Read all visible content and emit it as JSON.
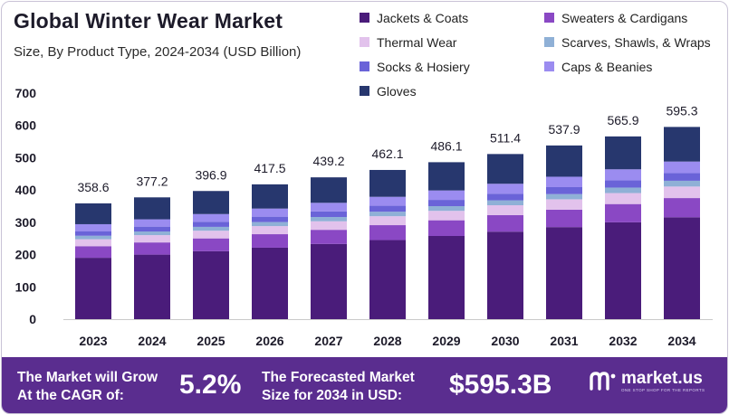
{
  "title": "Global Winter Wear Market",
  "subtitle": "Size, By Product Type, 2024-2034 (USD Billion)",
  "legend": [
    {
      "label": "Jackets & Coats",
      "color": "#4a1c7a"
    },
    {
      "label": "Sweaters & Cardigans",
      "color": "#8a48c4"
    },
    {
      "label": "Thermal Wear",
      "color": "#e2c2ec"
    },
    {
      "label": "Scarves, Shawls, & Wraps",
      "color": "#8fb0d6"
    },
    {
      "label": "Socks & Hosiery",
      "color": "#6a63d8"
    },
    {
      "label": "Caps & Beanies",
      "color": "#9b8cf0"
    },
    {
      "label": "Gloves",
      "color": "#27376e"
    }
  ],
  "chart_data": {
    "type": "bar",
    "stacked": true,
    "categories": [
      "2023",
      "2024",
      "2025",
      "2026",
      "2027",
      "2028",
      "2029",
      "2030",
      "2031",
      "2032",
      "2034"
    ],
    "totals": [
      358.6,
      377.2,
      396.9,
      417.5,
      439.2,
      462.1,
      486.1,
      511.4,
      537.9,
      565.9,
      595.3
    ],
    "total_labels": [
      "358.6",
      "377.2",
      "396.9",
      "417.5",
      "439.2",
      "462.1",
      "486.1",
      "511.4",
      "537.9",
      "565.9",
      "595.3"
    ],
    "series": [
      {
        "name": "Jackets & Coats",
        "color": "#4a1c7a",
        "values": [
          190.1,
          199.9,
          210.4,
          221.3,
          232.8,
          244.9,
          257.6,
          271.0,
          285.1,
          299.9,
          315.5
        ]
      },
      {
        "name": "Sweaters & Cardigans",
        "color": "#8a48c4",
        "values": [
          35.9,
          37.7,
          39.7,
          41.8,
          43.9,
          46.2,
          48.6,
          51.1,
          53.8,
          56.6,
          59.5
        ]
      },
      {
        "name": "Thermal Wear",
        "color": "#e2c2ec",
        "values": [
          21.5,
          22.6,
          23.8,
          25.1,
          26.4,
          27.7,
          29.2,
          30.7,
          32.3,
          34.0,
          35.7
        ]
      },
      {
        "name": "Scarves, Shawls, & Wraps",
        "color": "#8fb0d6",
        "values": [
          10.8,
          11.3,
          11.9,
          12.5,
          13.2,
          13.9,
          14.6,
          15.3,
          16.1,
          17.0,
          17.9
        ]
      },
      {
        "name": "Socks & Hosiery",
        "color": "#6a63d8",
        "values": [
          14.3,
          15.1,
          15.9,
          16.7,
          17.6,
          18.5,
          19.4,
          20.5,
          21.5,
          22.6,
          23.8
        ]
      },
      {
        "name": "Caps & Beanies",
        "color": "#9b8cf0",
        "values": [
          21.5,
          22.6,
          23.8,
          25.1,
          26.4,
          27.7,
          29.2,
          30.7,
          32.3,
          34.0,
          35.7
        ]
      },
      {
        "name": "Gloves",
        "color": "#27376e",
        "values": [
          64.5,
          68.0,
          71.4,
          75.0,
          78.9,
          83.2,
          87.5,
          92.1,
          96.8,
          101.8,
          107.2
        ]
      }
    ],
    "yticks": [
      0,
      100,
      200,
      300,
      400,
      500,
      600,
      700
    ],
    "ylim": [
      0,
      700
    ],
    "grid": false,
    "legend_position": "top-right"
  },
  "banner": {
    "cagr_text_line1": "The Market will Grow",
    "cagr_text_line2": "At the CAGR of:",
    "cagr_value": "5.2%",
    "forecast_text_line1": "The Forecasted Market",
    "forecast_text_line2": "Size for 2034 in USD:",
    "forecast_value": "$595.3B",
    "brand_name": "market.us",
    "brand_tagline": "ONE STOP SHOP FOR THE REPORTS"
  },
  "colors": {
    "banner_bg": "#5a2d8f",
    "text": "#1d1b2a"
  }
}
